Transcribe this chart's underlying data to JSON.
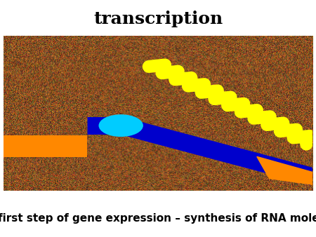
{
  "title": "transcription",
  "caption": "The first step of gene expression – synthesis of RNA molecule",
  "title_fontsize": 18,
  "caption_fontsize": 11,
  "orange_color": "#FF8800",
  "blue_color": "#0000CC",
  "cyan_color": "#00CCFF",
  "yellow_color": "#FFFF00",
  "fig_width": 4.5,
  "fig_height": 3.38,
  "dpi": 100
}
